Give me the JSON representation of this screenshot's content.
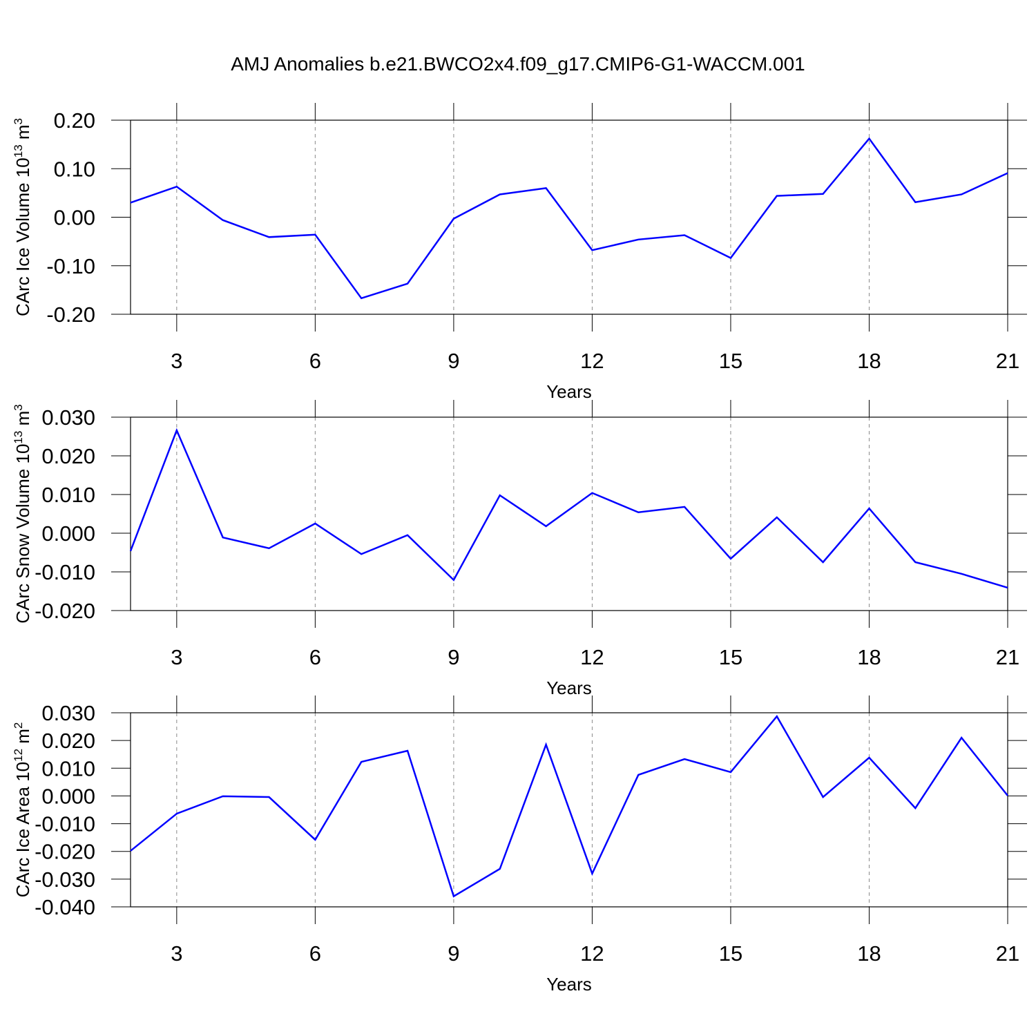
{
  "title": "AMJ Anomalies b.e21.BWCO2x4.f09_g17.CMIP6-G1-WACCM.001",
  "chart_data": [
    {
      "type": "line",
      "xlabel": "Years",
      "ylabel_parts": [
        "CArc Ice Volume 10",
        "13",
        " m",
        "3"
      ],
      "x": [
        2,
        3,
        4,
        5,
        6,
        7,
        8,
        9,
        10,
        11,
        12,
        13,
        14,
        15,
        16,
        17,
        18,
        19,
        20,
        21
      ],
      "series": [
        {
          "color": "#0000ff",
          "values": [
            0.03,
            0.063,
            -0.006,
            -0.041,
            -0.036,
            -0.167,
            -0.137,
            -0.003,
            0.047,
            0.06,
            -0.068,
            -0.046,
            -0.037,
            -0.084,
            0.044,
            0.048,
            0.162,
            0.031,
            0.047,
            0.091
          ]
        }
      ],
      "xlim": [
        2,
        21
      ],
      "xticks": [
        3,
        6,
        9,
        12,
        15,
        18,
        21
      ],
      "ylim": [
        -0.2,
        0.2
      ],
      "yticks": [
        {
          "value": -0.2,
          "label": "-0.20"
        },
        {
          "value": -0.1,
          "label": "-0.10"
        },
        {
          "value": 0,
          "label": "0.00"
        },
        {
          "value": 0.1,
          "label": "0.10"
        },
        {
          "value": 0.2,
          "label": "0.20"
        }
      ],
      "xgrid": true
    },
    {
      "type": "line",
      "xlabel": "Years",
      "ylabel_parts": [
        "CArc Snow Volume 10",
        "13",
        " m",
        "3"
      ],
      "x": [
        2,
        3,
        4,
        5,
        6,
        7,
        8,
        9,
        10,
        11,
        12,
        13,
        14,
        15,
        16,
        17,
        18,
        19,
        20,
        21
      ],
      "series": [
        {
          "color": "#0000ff",
          "values": [
            -0.0046,
            0.0266,
            -0.0011,
            -0.0039,
            0.0025,
            -0.0054,
            -0.0005,
            -0.0121,
            0.0098,
            0.0018,
            0.0104,
            0.0054,
            0.0068,
            -0.0066,
            0.0041,
            -0.0075,
            0.0064,
            -0.0075,
            -0.0105,
            -0.0141
          ]
        }
      ],
      "xlim": [
        2,
        21
      ],
      "xticks": [
        3,
        6,
        9,
        12,
        15,
        18,
        21
      ],
      "ylim": [
        -0.02,
        0.03
      ],
      "yticks": [
        {
          "value": -0.02,
          "label": "-0.020"
        },
        {
          "value": -0.01,
          "label": "-0.010"
        },
        {
          "value": 0,
          "label": "0.000"
        },
        {
          "value": 0.01,
          "label": "0.010"
        },
        {
          "value": 0.02,
          "label": "0.020"
        },
        {
          "value": 0.03,
          "label": "0.030"
        }
      ],
      "xgrid": true
    },
    {
      "type": "line",
      "xlabel": "Years",
      "ylabel_parts": [
        "CArc Ice Area 10",
        "12",
        " m",
        "2"
      ],
      "x": [
        2,
        3,
        4,
        5,
        6,
        7,
        8,
        9,
        10,
        11,
        12,
        13,
        14,
        15,
        16,
        17,
        18,
        19,
        20,
        21
      ],
      "series": [
        {
          "color": "#0000ff",
          "values": [
            -0.0198,
            -0.0064,
            -0.0001,
            -0.0004,
            -0.0158,
            0.0123,
            0.0163,
            -0.0362,
            -0.0263,
            0.0185,
            -0.028,
            0.0076,
            0.0133,
            0.0086,
            0.0287,
            -0.0004,
            0.0138,
            -0.0044,
            0.021,
            0.0001
          ]
        }
      ],
      "xlim": [
        2,
        21
      ],
      "xticks": [
        3,
        6,
        9,
        12,
        15,
        18,
        21
      ],
      "ylim": [
        -0.04,
        0.03
      ],
      "yticks": [
        {
          "value": -0.04,
          "label": "-0.040"
        },
        {
          "value": -0.03,
          "label": "-0.030"
        },
        {
          "value": -0.02,
          "label": "-0.020"
        },
        {
          "value": -0.01,
          "label": "-0.010"
        },
        {
          "value": 0,
          "label": "0.000"
        },
        {
          "value": 0.01,
          "label": "0.010"
        },
        {
          "value": 0.02,
          "label": "0.020"
        },
        {
          "value": 0.03,
          "label": "0.030"
        }
      ],
      "xgrid": true
    }
  ]
}
